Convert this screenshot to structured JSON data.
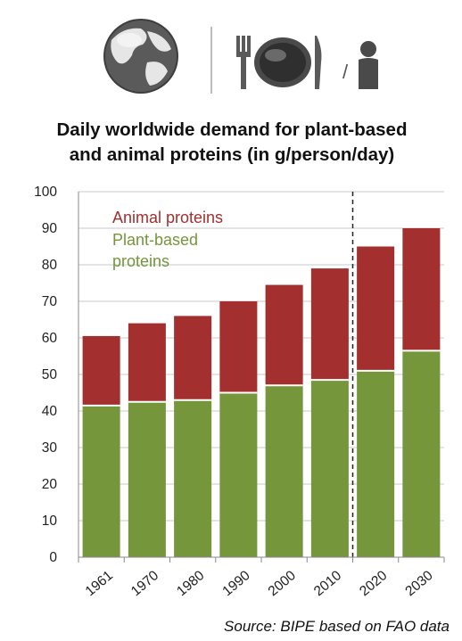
{
  "header": {
    "icons": [
      "globe-icon",
      "cutlery-plate-icon",
      "person-icon"
    ],
    "slash": "/"
  },
  "chart_data": {
    "type": "bar",
    "stacked": true,
    "title": [
      "Daily worldwide demand for plant-based",
      "and animal proteins (in g/person/day)"
    ],
    "categories": [
      "1961",
      "1970",
      "1980",
      "1990",
      "2000",
      "2010",
      "2020",
      "2030"
    ],
    "series": [
      {
        "name": "Plant-based proteins",
        "values": [
          41.5,
          42.5,
          43,
          45,
          47,
          48.5,
          51,
          56.5
        ],
        "color": "#75963a"
      },
      {
        "name": "Animal proteins",
        "values": [
          19,
          21.5,
          23,
          25,
          27.5,
          30.5,
          34,
          33.5
        ],
        "color": "#a32f2f"
      }
    ],
    "legend_labels": [
      "Animal proteins",
      "Plant-based",
      "proteins"
    ],
    "ylim": [
      0,
      100
    ],
    "yticks": [
      0,
      10,
      20,
      30,
      40,
      50,
      60,
      70,
      80,
      90,
      100
    ],
    "grid": true,
    "projection_divider_after": "2010",
    "legend_position": "top-left inside"
  },
  "source": "Source: BIPE based on FAO data"
}
